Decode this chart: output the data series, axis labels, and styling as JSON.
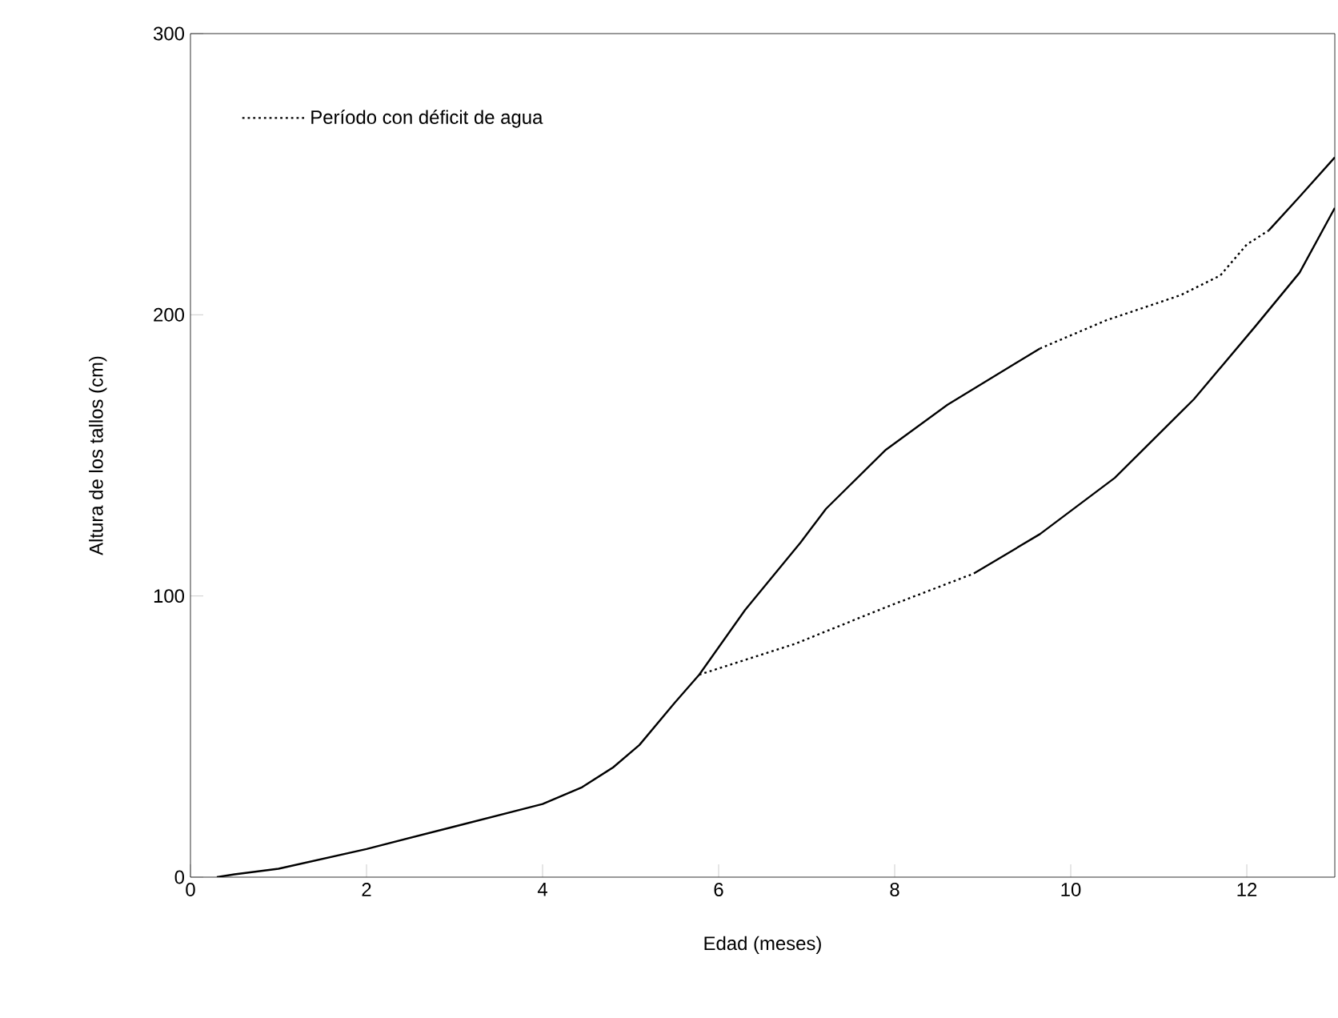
{
  "chart_data": {
    "type": "line",
    "xlabel": "Edad (meses)",
    "ylabel": "Altura de los tallos (cm)",
    "xlim": [
      0,
      13
    ],
    "ylim": [
      0,
      300
    ],
    "xticks": [
      0,
      2,
      4,
      6,
      8,
      10,
      12
    ],
    "yticks": [
      0,
      100,
      200,
      300
    ],
    "grid": false,
    "legend": "top left",
    "marker": "none",
    "series": [
      {
        "color": "#000000",
        "line_style": "solid",
        "x": [
          0.3,
          0.5,
          1,
          2,
          3,
          4,
          4.45,
          4.8,
          5.1,
          5.5,
          5.78,
          6.3,
          6.93,
          7.22,
          7.9,
          8.6,
          9.65
        ],
        "values": [
          0,
          1,
          3,
          10,
          18,
          26,
          32,
          39,
          47,
          62,
          72,
          95,
          119,
          131,
          152,
          168,
          188
        ]
      },
      {
        "color": "#000000",
        "line_style": "solid",
        "x": [
          12.25,
          12.6,
          13
        ],
        "values": [
          230,
          242,
          256
        ]
      },
      {
        "color": "#000000",
        "line_style": "solid",
        "x": [
          8.9,
          9.65,
          10.5,
          11.4,
          12.1,
          12.6,
          13
        ],
        "values": [
          108,
          122,
          142,
          170,
          196,
          215,
          238
        ]
      },
      {
        "name": "Período con déficit de agua",
        "color": "#000000",
        "line_style": "dotted",
        "x": [
          9.65,
          10.4,
          11.25,
          11.7,
          12.0,
          12.25,
          null,
          5.78,
          6.87,
          7.9,
          8.9
        ],
        "values": [
          188,
          198,
          207,
          214,
          225,
          230,
          null,
          72,
          83,
          96,
          108
        ]
      }
    ]
  }
}
